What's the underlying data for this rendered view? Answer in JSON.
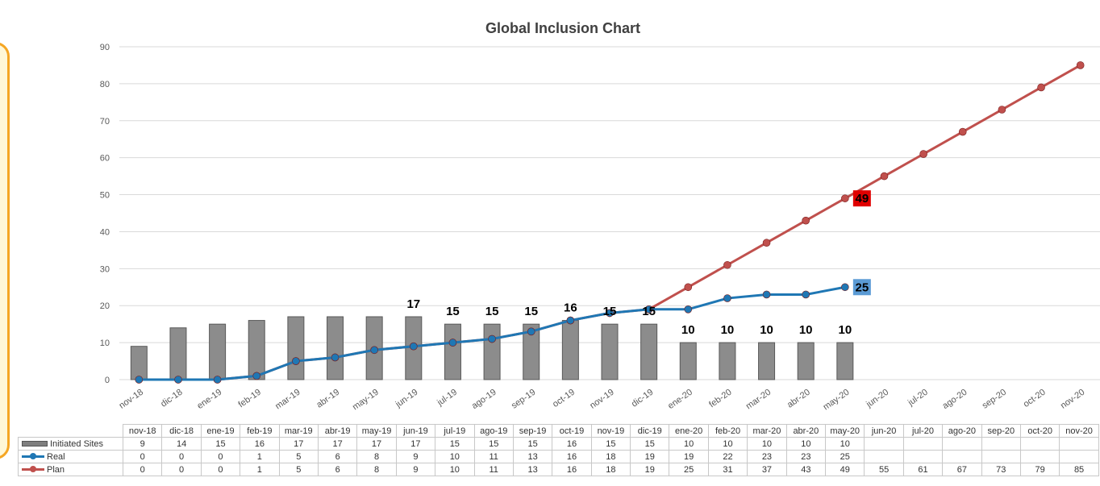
{
  "chart_data": {
    "type": "bar+line",
    "title": "Global Inclusion Chart",
    "categories": [
      "nov-18",
      "dic-18",
      "ene-19",
      "feb-19",
      "mar-19",
      "abr-19",
      "may-19",
      "jun-19",
      "jul-19",
      "ago-19",
      "sep-19",
      "oct-19",
      "nov-19",
      "dic-19",
      "ene-20",
      "feb-20",
      "mar-20",
      "abr-20",
      "may-20",
      "jun-20",
      "jul-20",
      "ago-20",
      "sep-20",
      "oct-20",
      "nov-20"
    ],
    "ylim": [
      0,
      90
    ],
    "yticks": [
      0,
      10,
      20,
      30,
      40,
      50,
      60,
      70,
      80,
      90
    ],
    "grid": true,
    "legend": "data-table-left",
    "series": [
      {
        "name": "Initiated Sites",
        "kind": "bar",
        "color": "#7f7f7f",
        "values": [
          9,
          14,
          15,
          16,
          17,
          17,
          17,
          17,
          15,
          15,
          15,
          16,
          15,
          15,
          10,
          10,
          10,
          10,
          10,
          null,
          null,
          null,
          null,
          null,
          null
        ],
        "labels_shown": {
          "7": "17",
          "8": "15",
          "9": "15",
          "10": "15",
          "11": "16",
          "12": "15",
          "13": "15",
          "14": "10",
          "15": "10",
          "16": "10",
          "17": "10",
          "18": "10"
        }
      },
      {
        "name": "Real",
        "kind": "line",
        "color": "#1f77b4",
        "values": [
          0,
          0,
          0,
          1,
          5,
          6,
          8,
          9,
          10,
          11,
          13,
          16,
          18,
          19,
          19,
          22,
          23,
          23,
          25,
          null,
          null,
          null,
          null,
          null,
          null
        ],
        "end_label": "25",
        "end_label_bg": "#5b9bd5"
      },
      {
        "name": "Plan",
        "kind": "line",
        "color": "#c0504d",
        "values": [
          0,
          0,
          0,
          1,
          5,
          6,
          8,
          9,
          10,
          11,
          13,
          16,
          18,
          19,
          25,
          31,
          37,
          43,
          49,
          55,
          61,
          67,
          73,
          79,
          85
        ],
        "end_label": "49",
        "end_label_bg": "#e00000",
        "end_label_index": 18
      }
    ],
    "table_rows": [
      {
        "label": "Initiated Sites",
        "cells": [
          "9",
          "14",
          "15",
          "16",
          "17",
          "17",
          "17",
          "17",
          "15",
          "15",
          "15",
          "16",
          "15",
          "15",
          "10",
          "10",
          "10",
          "10",
          "10",
          "",
          "",
          "",
          "",
          "",
          ""
        ]
      },
      {
        "label": "Real",
        "cells": [
          "0",
          "0",
          "0",
          "1",
          "5",
          "6",
          "8",
          "9",
          "10",
          "11",
          "13",
          "16",
          "18",
          "19",
          "19",
          "22",
          "23",
          "23",
          "25",
          "",
          "",
          "",
          "",
          "",
          ""
        ]
      },
      {
        "label": "Plan",
        "cells": [
          "0",
          "0",
          "0",
          "1",
          "5",
          "6",
          "8",
          "9",
          "10",
          "11",
          "13",
          "16",
          "18",
          "19",
          "25",
          "31",
          "37",
          "43",
          "49",
          "55",
          "61",
          "67",
          "73",
          "79",
          "85"
        ]
      }
    ]
  }
}
